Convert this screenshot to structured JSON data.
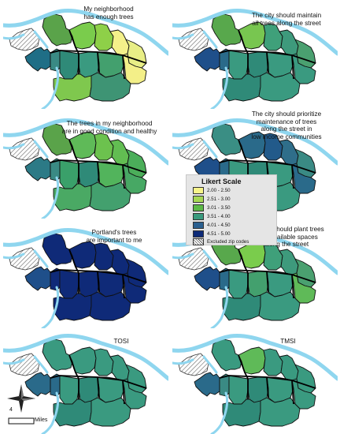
{
  "panels": [
    {
      "id": "p1",
      "title": "My neighborhood\nhas enough trees",
      "colors": {
        "n1": "#5aa34a",
        "n2": "#7acc4c",
        "n3": "#8ed048",
        "n4": "#f4f08a",
        "n5": "#e8ee86",
        "w1": "#1f6e86",
        "w2": "#3a8a84",
        "s1": "#2f8a78",
        "s2": "#3a9a80",
        "s3": "#43a06e",
        "s4": "#f3ef88",
        "s5": "#7fc84e",
        "s6": "#3e9474"
      }
    },
    {
      "id": "p2",
      "title": "The city should maintain\nall trees along the street",
      "colors": {
        "n1": "#58a84c",
        "n2": "#78c650",
        "n3": "#3fa07a",
        "n4": "#3e9a7c",
        "n5": "#4aa070",
        "w1": "#1f4f8a",
        "w2": "#2a6a8a",
        "s1": "#3a9a80",
        "s2": "#2f8a78",
        "s3": "#3a9a80",
        "s4": "#3a9a80",
        "s5": "#2f8a78",
        "s6": "#3a9a80"
      }
    },
    {
      "id": "p3",
      "title": "The trees in my neighborhood\nare in good condition and healthy",
      "colors": {
        "n1": "#5aa34a",
        "n2": "#5fba58",
        "n3": "#6cc24e",
        "n4": "#62bd52",
        "n5": "#4bae5a",
        "w1": "#2c7a86",
        "w2": "#3a8a84",
        "s1": "#3aa06a",
        "s2": "#2f8a78",
        "s3": "#52b45c",
        "s4": "#47a864",
        "s5": "#4aa964",
        "s6": "#43a06e"
      }
    },
    {
      "id": "p4",
      "title": "The city should prioritize\nmaintenance of trees\nalong the street in\nlow income communities",
      "colors": {
        "n1": "#3a8e84",
        "n2": "#2a6a8a",
        "n3": "#225a8a",
        "n4": "#2f6e8a",
        "n5": "#3a8a84",
        "w1": "#1f4f8a",
        "w2": "#2a6a8a",
        "s1": "#3a9a80",
        "s2": "#2f8a78",
        "s3": "#3a9a80",
        "s4": "#2a6a8a",
        "s5": "#2f8a78",
        "s6": "#3a9a80"
      }
    },
    {
      "id": "p5",
      "title": "Portland's trees\nare important to me",
      "colors": {
        "n1": "#0f2a78",
        "n2": "#0f2a78",
        "n3": "#0f2a78",
        "n4": "#0f2a78",
        "n5": "#0f2a78",
        "w1": "#1f4f8a",
        "w2": "#0f2a78",
        "s1": "#0f2a78",
        "s2": "#0f2a78",
        "s3": "#0f2a78",
        "s4": "#0f2a78",
        "s5": "#0f2a78",
        "s6": "#0f2a78"
      }
    },
    {
      "id": "p6",
      "title": "The city should plant trees\nin all available spaces\nalong the street",
      "colors": {
        "n1": "#58a84c",
        "n2": "#7acc4c",
        "n3": "#3fa07a",
        "n4": "#3e9a7c",
        "n5": "#4aa070",
        "w1": "#1f4f8a",
        "w2": "#2a6a8a",
        "s1": "#3a9a80",
        "s2": "#43a06e",
        "s3": "#3a9a80",
        "s4": "#5fba58",
        "s5": "#2f8a78",
        "s6": "#3a9a80"
      }
    },
    {
      "id": "p7",
      "title": "TOSI",
      "colors": {
        "n1": "#3a9a80",
        "n2": "#3a9a80",
        "n3": "#3a9a80",
        "n4": "#3a9a80",
        "n5": "#3a9a80",
        "w1": "#2a6a8a",
        "w2": "#2a6a8a",
        "s1": "#3a9a80",
        "s2": "#2f8a78",
        "s3": "#3a9a80",
        "s4": "#3a9a80",
        "s5": "#2f8a78",
        "s6": "#3a9a80"
      }
    },
    {
      "id": "p8",
      "title": "TMSI",
      "colors": {
        "n1": "#3a9a80",
        "n2": "#5fba58",
        "n3": "#3a9a80",
        "n4": "#3a9a80",
        "n5": "#3a9a80",
        "w1": "#2a6a8a",
        "w2": "#3a8a84",
        "s1": "#3a9a80",
        "s2": "#2f8a78",
        "s3": "#3a9a80",
        "s4": "#3a9a80",
        "s5": "#2f8a78",
        "s6": "#3a9a80"
      }
    }
  ],
  "legend": {
    "title": "Likert Scale",
    "items": [
      {
        "label": "2.00 - 2.50",
        "color": "#f7f489"
      },
      {
        "label": "2.51 - 3.00",
        "color": "#a6d854"
      },
      {
        "label": "3.01 - 3.50",
        "color": "#5cb947"
      },
      {
        "label": "3.51 - 4.00",
        "color": "#3a9a7e"
      },
      {
        "label": "4.01 - 4.50",
        "color": "#2a5f8f"
      },
      {
        "label": "4.51 - 5.00",
        "color": "#0d2a78"
      }
    ],
    "excluded_label": "Excluded zip codes"
  },
  "scale": {
    "number": "4",
    "unit": "Miles"
  },
  "north_arrow_icon": "compass-rose-icon",
  "river_color": "#8fd6ef"
}
